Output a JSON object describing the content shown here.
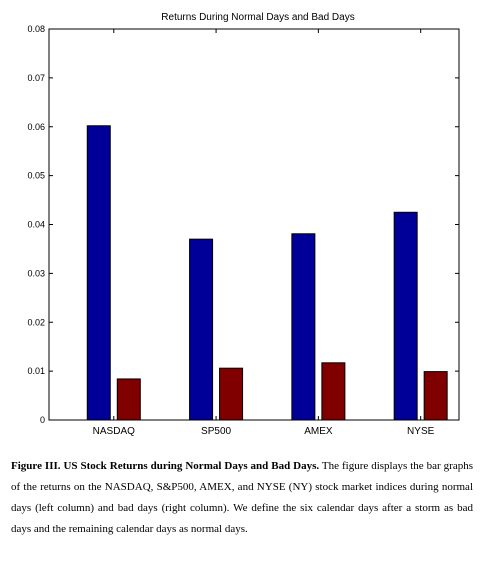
{
  "chart_data": {
    "type": "bar",
    "title": "Returns During Normal Days and Bad Days",
    "xlabel": "",
    "ylabel": "",
    "categories": [
      "NASDAQ",
      "SP500",
      "AMEX",
      "NYSE"
    ],
    "series": [
      {
        "values": [
          0.0602,
          0.037,
          0.0381,
          0.0425
        ],
        "color": "#000099"
      },
      {
        "values": [
          0.0084,
          0.0106,
          0.0117,
          0.0099
        ],
        "color": "#800000"
      }
    ],
    "ylim": [
      0,
      0.08
    ],
    "yticks": [
      0,
      0.01,
      0.02,
      0.03,
      0.04,
      0.05,
      0.06,
      0.07,
      0.08
    ],
    "ytick_labels": [
      "0",
      "0.01",
      "0.02",
      "0.03",
      "0.04",
      "0.05",
      "0.06",
      "0.07",
      "0.08"
    ],
    "grid": false,
    "legend": "none"
  },
  "caption": {
    "label": "Figure III. US Stock Returns during Normal Days and Bad Days.",
    "text": " The figure displays the bar graphs of the returns on the NASDAQ, S&P500, AMEX, and NYSE (NY) stock market indices during normal days (left column) and bad days (right column). We define the six calendar days after a storm as bad days and the remaining calendar days as normal days."
  }
}
